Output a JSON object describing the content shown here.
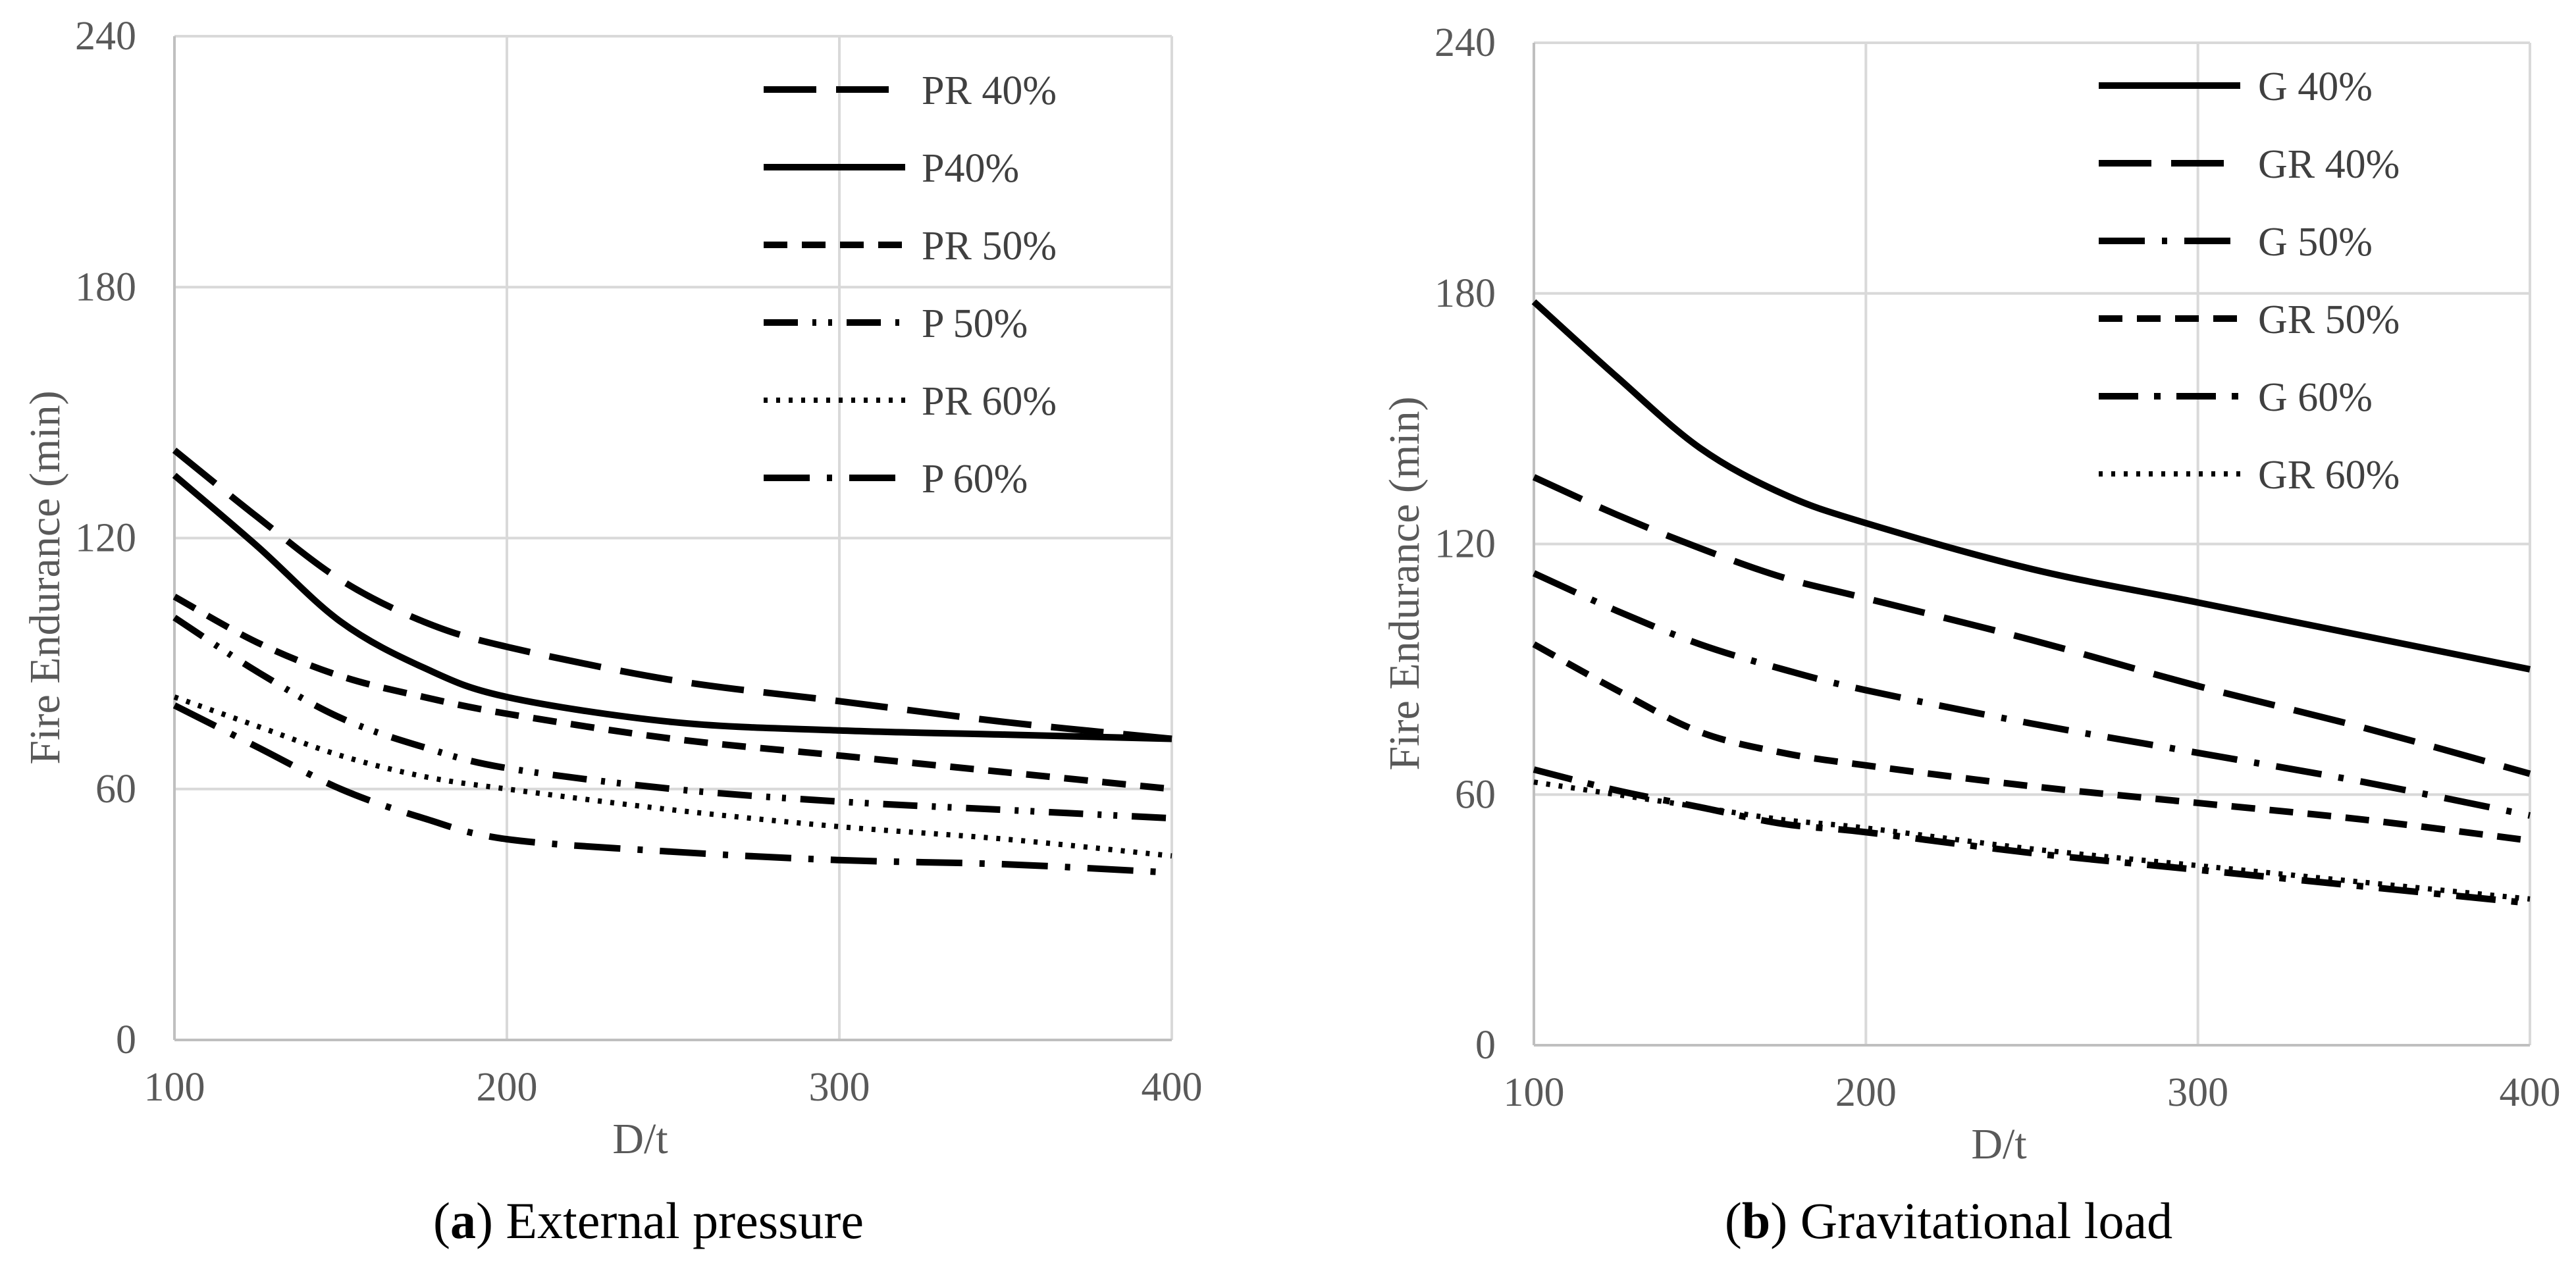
{
  "chart_data": [
    {
      "type": "line",
      "panel": "a",
      "caption_letter": "a",
      "caption_text": "External pressure",
      "xlabel": "D/t",
      "ylabel": "Fire Endurance (min)",
      "xlim": [
        100,
        400
      ],
      "ylim": [
        0,
        240
      ],
      "xticks": [
        100,
        200,
        300,
        400
      ],
      "yticks": [
        0,
        60,
        120,
        180,
        240
      ],
      "grid": true,
      "legend_position": "top-right",
      "series": [
        {
          "name": "PR 40%",
          "dash": "longdash",
          "x": [
            100,
            125,
            150,
            175,
            200,
            250,
            300,
            350,
            400
          ],
          "y": [
            141,
            125,
            110,
            100,
            94,
            86,
            81,
            76,
            72
          ]
        },
        {
          "name": "P40%",
          "dash": "solid",
          "x": [
            100,
            125,
            150,
            175,
            200,
            250,
            300,
            350,
            400
          ],
          "y": [
            135,
            118,
            100,
            89,
            82,
            76,
            74,
            73,
            72
          ]
        },
        {
          "name": "PR 50%",
          "dash": "dash",
          "x": [
            100,
            125,
            150,
            175,
            200,
            250,
            300,
            350,
            400
          ],
          "y": [
            106,
            95,
            87,
            82,
            78,
            72,
            68,
            64,
            60
          ]
        },
        {
          "name": "P 50%",
          "dash": "dashdotdot",
          "x": [
            100,
            125,
            150,
            175,
            200,
            250,
            300,
            350,
            400
          ],
          "y": [
            101,
            88,
            77,
            70,
            65,
            60,
            57,
            55,
            53
          ]
        },
        {
          "name": "PR 60%",
          "dash": "dot",
          "x": [
            100,
            125,
            150,
            175,
            200,
            250,
            300,
            350,
            400
          ],
          "y": [
            82,
            75,
            68,
            63,
            60,
            55,
            51,
            48,
            44
          ]
        },
        {
          "name": "P 60%",
          "dash": "longdashdot",
          "x": [
            100,
            125,
            150,
            175,
            200,
            250,
            300,
            350,
            400
          ],
          "y": [
            80,
            70,
            60,
            53,
            48,
            45,
            43,
            42,
            40
          ]
        }
      ]
    },
    {
      "type": "line",
      "panel": "b",
      "caption_letter": "b",
      "caption_text": "Gravitational load",
      "xlabel": "D/t",
      "ylabel": "Fire Endurance (min)",
      "xlim": [
        100,
        400
      ],
      "ylim": [
        0,
        240
      ],
      "xticks": [
        100,
        200,
        300,
        400
      ],
      "yticks": [
        0,
        60,
        120,
        180,
        240
      ],
      "grid": true,
      "legend_position": "top-right",
      "series": [
        {
          "name": "G 40%",
          "dash": "solid",
          "x": [
            100,
            125,
            150,
            175,
            200,
            250,
            300,
            350,
            400
          ],
          "y": [
            178,
            160,
            143,
            132,
            125,
            114,
            106,
            98,
            90
          ]
        },
        {
          "name": "GR 40%",
          "dash": "longdash",
          "x": [
            100,
            125,
            150,
            175,
            200,
            250,
            300,
            350,
            400
          ],
          "y": [
            136,
            127,
            119,
            112,
            107,
            97,
            86,
            76,
            65
          ]
        },
        {
          "name": "G 50%",
          "dash": "longdashdot",
          "x": [
            100,
            125,
            150,
            175,
            200,
            250,
            300,
            350,
            400
          ],
          "y": [
            113,
            104,
            96,
            90,
            85,
            77,
            70,
            63,
            55
          ]
        },
        {
          "name": "GR 50%",
          "dash": "dash",
          "x": [
            100,
            125,
            150,
            175,
            200,
            250,
            300,
            350,
            400
          ],
          "y": [
            96,
            85,
            75,
            70,
            67,
            62,
            58,
            54,
            49
          ]
        },
        {
          "name": "G 60%",
          "dash": "longdashdot2",
          "x": [
            100,
            125,
            150,
            175,
            200,
            250,
            300,
            350,
            400
          ],
          "y": [
            66,
            61,
            57,
            53,
            51,
            46,
            42,
            38,
            34
          ]
        },
        {
          "name": "GR 60%",
          "dash": "dot",
          "x": [
            100,
            125,
            150,
            175,
            200,
            250,
            300,
            350,
            400
          ],
          "y": [
            63,
            60,
            57,
            54,
            52,
            47,
            43,
            39,
            35
          ]
        }
      ]
    }
  ]
}
